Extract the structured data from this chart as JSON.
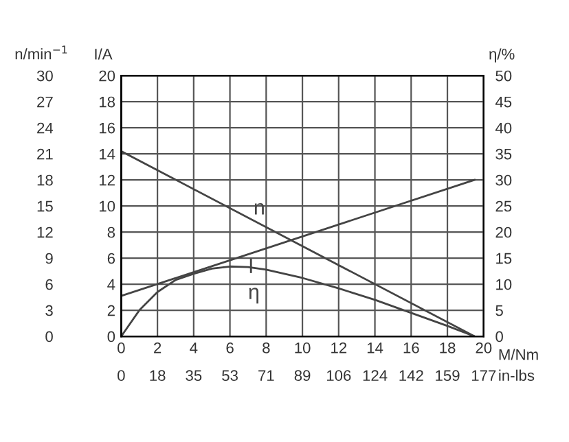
{
  "chart_data": {
    "type": "line",
    "xlabel": "M/Nm",
    "x2label": "in-lbs",
    "ylabel": "I/A",
    "y2label": "η/%",
    "y3label": "n/min$^{−1}$",
    "xlim": [
      0,
      20
    ],
    "xticks": [
      0,
      2,
      4,
      6,
      8,
      10,
      12,
      14,
      16,
      18,
      20
    ],
    "x2lim": [
      0,
      177
    ],
    "x2ticks": [
      0,
      {
        "value": 17.7,
        "label": "18"
      },
      {
        "value": 35.4,
        "label": "35"
      },
      {
        "value": 53.1,
        "label": "53"
      },
      {
        "value": 70.8,
        "label": "71"
      },
      {
        "value": 88.5,
        "label": "89"
      },
      {
        "value": 106.2,
        "label": "106"
      },
      {
        "value": 123.9,
        "label": "124"
      },
      {
        "value": 141.6,
        "label": "142"
      },
      {
        "value": 159.3,
        "label": "159"
      },
      177
    ],
    "ylim": [
      0,
      20
    ],
    "yticks": [
      0,
      2,
      4,
      6,
      8,
      10,
      12,
      14,
      16,
      18,
      20
    ],
    "y2lim": [
      0,
      50
    ],
    "y2ticks": [
      0,
      5,
      10,
      15,
      20,
      25,
      30,
      35,
      40,
      45,
      50
    ],
    "y3lim": [
      0,
      30
    ],
    "y3ticks": [
      0,
      3,
      6,
      9,
      12,
      15,
      18,
      21,
      24,
      27,
      30
    ],
    "grid": true,
    "legend": false,
    "marker": "none",
    "line_style": "solid",
    "series": [
      {
        "name": "n",
        "color": "#444444",
        "axis": "y3",
        "x": [
          0,
          19.5
        ],
        "values": [
          21.3,
          0
        ]
      },
      {
        "name": "I",
        "color": "#444444",
        "axis": "y",
        "x": [
          0,
          19.5
        ],
        "values": [
          3.1,
          12.0
        ]
      },
      {
        "name": "η",
        "color": "#444444",
        "axis": "y2",
        "x": [
          0,
          1,
          2,
          3,
          4,
          5,
          6,
          7,
          8,
          10,
          12,
          14,
          16,
          18,
          19.5
        ],
        "values": [
          0,
          5,
          8.5,
          10.8,
          12,
          13,
          13.4,
          13.3,
          12.8,
          11.2,
          9.2,
          7,
          4.5,
          2,
          0
        ]
      }
    ]
  }
}
